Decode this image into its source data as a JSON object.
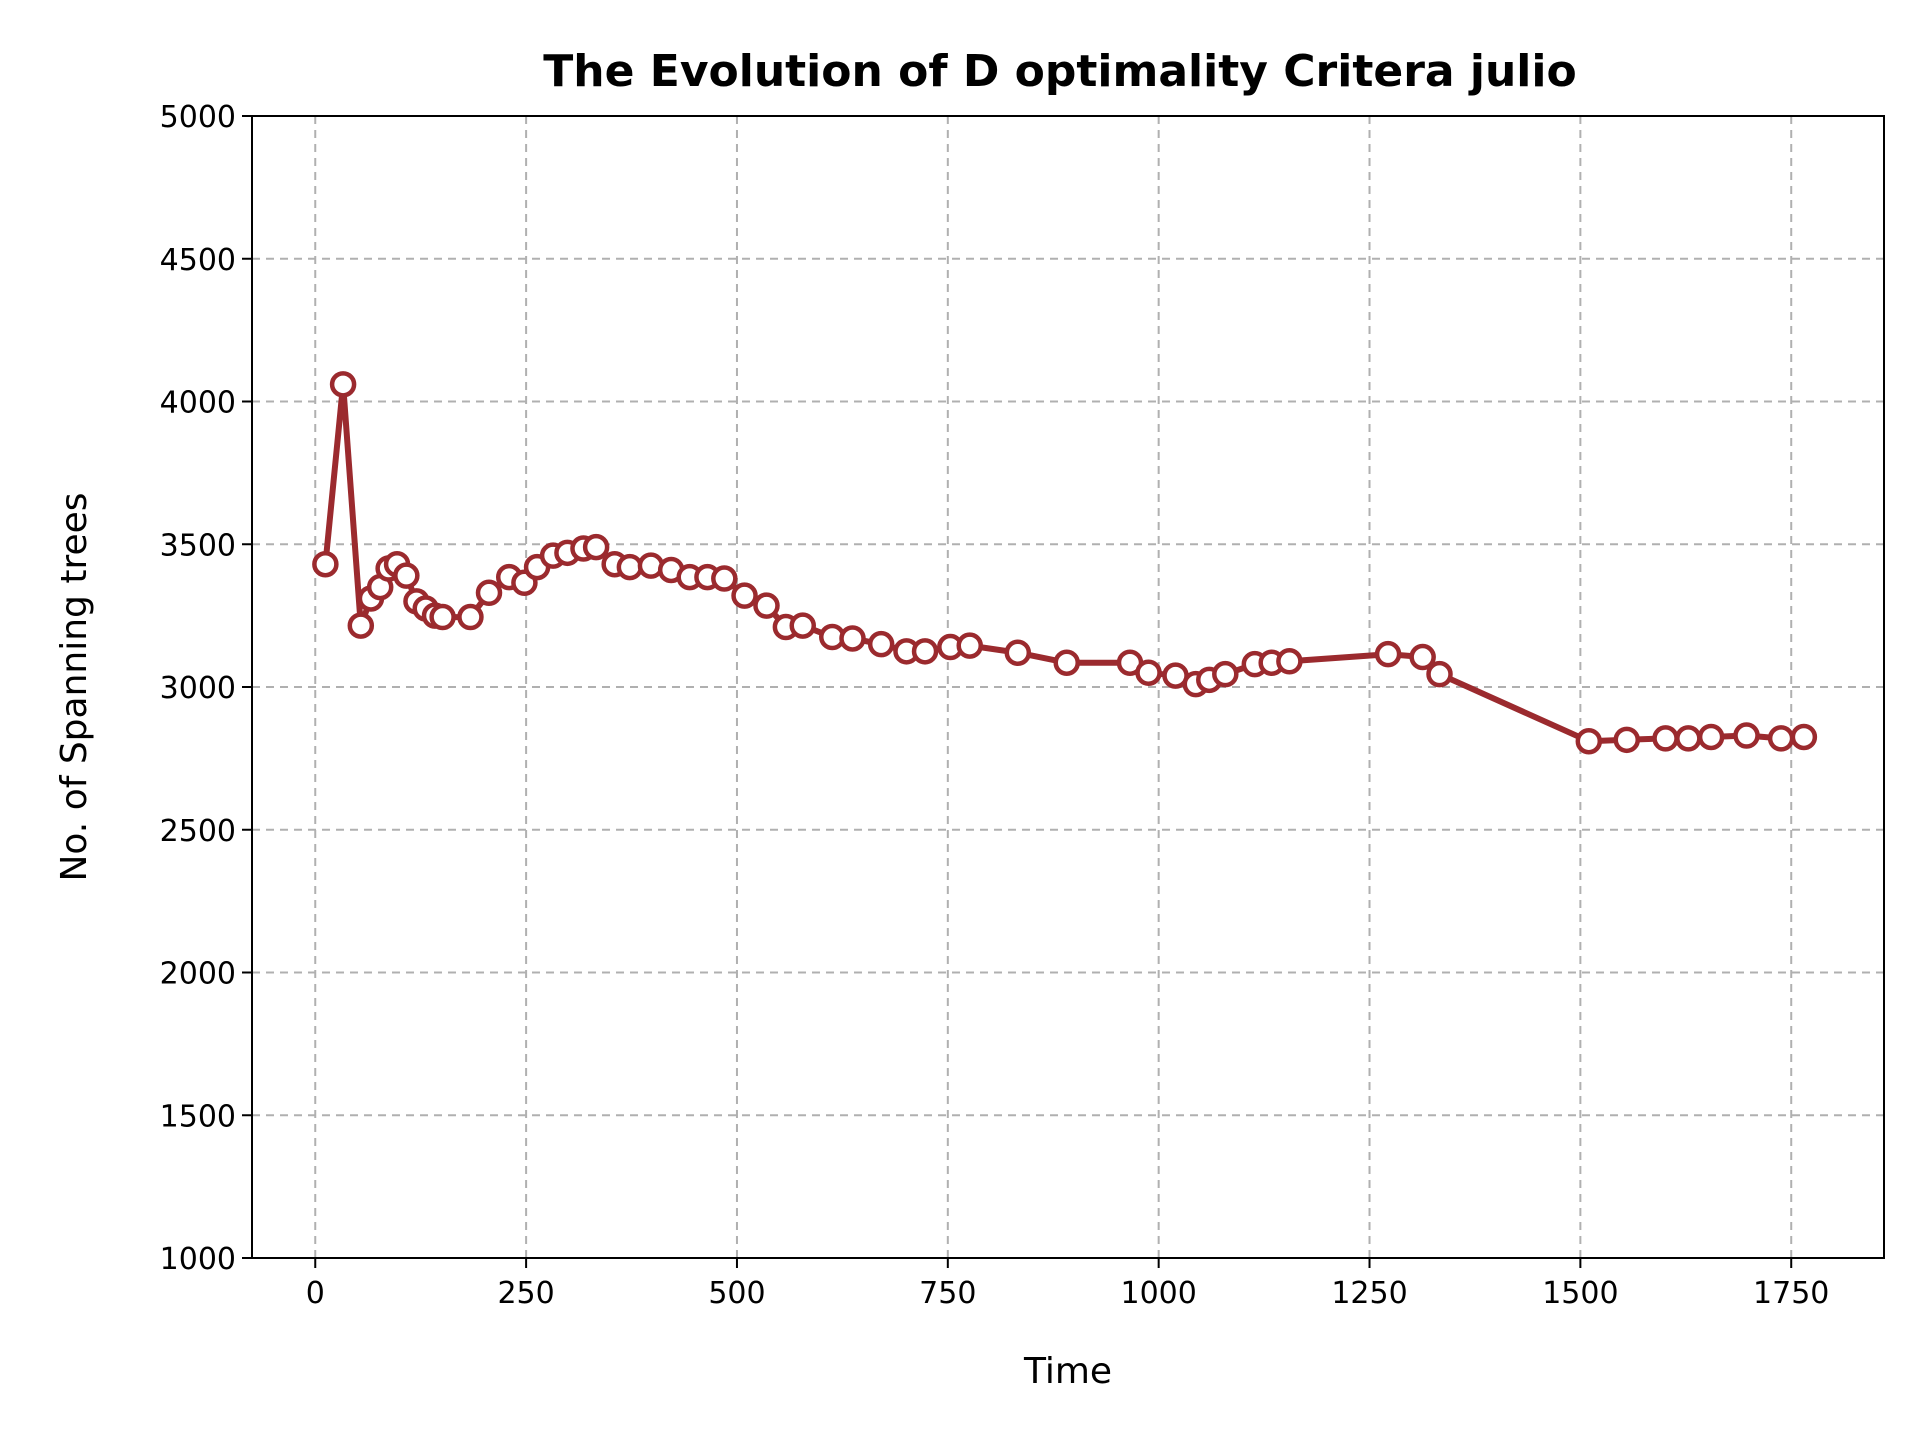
{
  "chart_data": {
    "type": "line",
    "title": "The Evolution of D optimality Critera julio",
    "xlabel": "Time",
    "ylabel": "No. of Spanning trees",
    "xlim": [
      -75,
      1860
    ],
    "ylim": [
      1000,
      5000
    ],
    "xticks": [
      0,
      250,
      500,
      750,
      1000,
      1250,
      1500,
      1750
    ],
    "yticks": [
      1000,
      1500,
      2000,
      2500,
      3000,
      3500,
      4000,
      4500,
      5000
    ],
    "grid": true,
    "colors": {
      "line": "#9b2a2e",
      "marker_fill": "#ffffff",
      "grid": "#b0b0b0"
    },
    "series": [
      {
        "x": [
          12,
          33,
          54,
          66,
          77,
          87,
          97,
          108,
          120,
          131,
          142,
          151,
          184,
          206,
          230,
          248,
          263,
          282,
          299,
          318,
          333,
          355,
          373,
          398,
          422,
          444,
          465,
          485,
          509,
          535,
          558,
          578,
          613,
          637,
          671,
          701,
          723,
          753,
          776,
          833,
          891,
          966,
          988,
          1020,
          1044,
          1060,
          1079,
          1114,
          1134,
          1155,
          1272,
          1313,
          1333,
          1510,
          1555,
          1601,
          1628,
          1655,
          1697,
          1738,
          1765
        ],
        "y": [
          3430,
          4060,
          3215,
          3310,
          3350,
          3415,
          3430,
          3390,
          3300,
          3275,
          3250,
          3245,
          3245,
          3330,
          3385,
          3365,
          3420,
          3460,
          3470,
          3485,
          3490,
          3430,
          3420,
          3425,
          3410,
          3385,
          3385,
          3380,
          3320,
          3285,
          3210,
          3215,
          3175,
          3170,
          3150,
          3125,
          3125,
          3140,
          3145,
          3120,
          3085,
          3085,
          3050,
          3040,
          3010,
          3025,
          3045,
          3080,
          3085,
          3090,
          3115,
          3105,
          3045,
          2810,
          2815,
          2820,
          2820,
          2825,
          2830,
          2820,
          2825
        ]
      }
    ]
  }
}
